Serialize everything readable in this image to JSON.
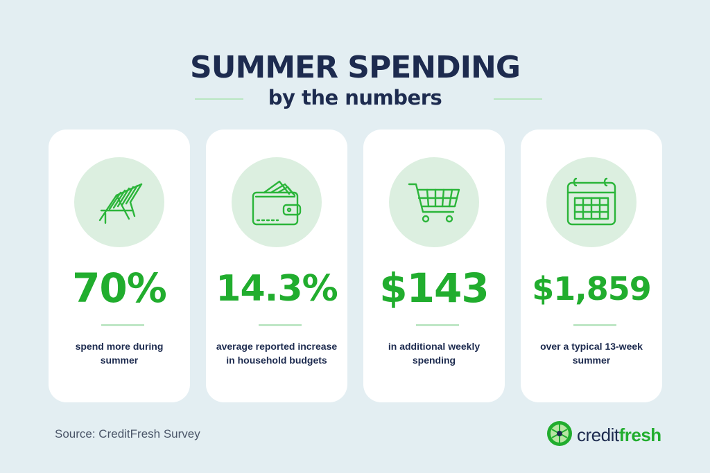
{
  "header": {
    "title": "SUMMER SPENDING",
    "subtitle": "by the numbers"
  },
  "cards": [
    {
      "icon": "beach-chair-icon",
      "stat": "70%",
      "description": "spend more during summer"
    },
    {
      "icon": "wallet-icon",
      "stat": "14.3%",
      "description": "average reported increase in household budgets"
    },
    {
      "icon": "shopping-cart-icon",
      "stat": "$143",
      "description": "in additional weekly spending"
    },
    {
      "icon": "calendar-icon",
      "stat": "$1,859",
      "description": "over a typical 13-week summer"
    }
  ],
  "footer": {
    "source": "Source: CreditFresh Survey",
    "brand_part1": "credit",
    "brand_part2": "fresh"
  },
  "colors": {
    "background": "#e3eef2",
    "title": "#1d2b4f",
    "accent_green": "#21ad2e",
    "icon_circle": "#dcefe0",
    "card": "#ffffff"
  }
}
